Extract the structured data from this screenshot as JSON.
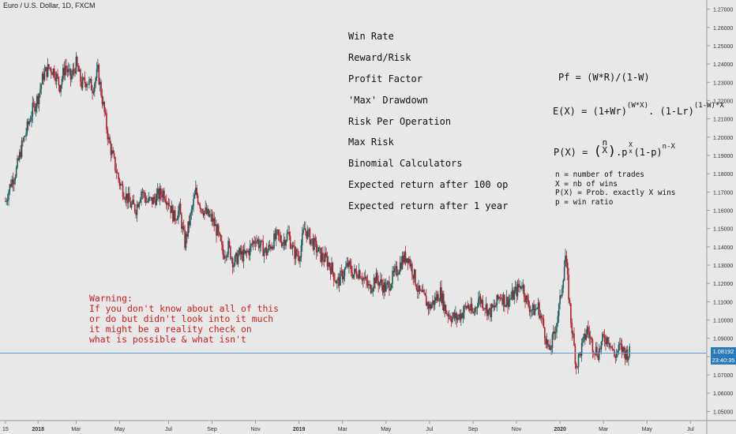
{
  "header": {
    "symbol_title": "Euro / U.S. Dollar, 1D, FXCM"
  },
  "menu": {
    "items": [
      "Win Rate",
      "Reward/Risk",
      "Profit Factor",
      "'Max' Drawdown",
      "Risk Per Operation",
      "Max Risk",
      "Binomial Calculators",
      "Expected return after 100 op",
      "Expected return after 1 year"
    ]
  },
  "formulas": {
    "pf": "Pf = (W*R)/(1-W)",
    "ex_left": "E(X) = (1+Wr)",
    "ex_sup1": "(W*X)",
    "ex_mid": ". (1-Lr)",
    "ex_sup2": "(1-W)*X",
    "px_left": "P(X) = ",
    "px_paren_open": "(",
    "px_n": "n",
    "px_x": "X",
    "px_paren_close": ")",
    "px_mid": ".p",
    "px_sup_x": "X",
    "px_sub_x": "x",
    "px_tail": "(1-p)",
    "px_sup_nx": "n-X"
  },
  "notes": [
    "n = number of trades",
    "X = nb of wins",
    "P(X) = Prob. exactly X wins",
    "p = win ratio"
  ],
  "warning": [
    "Warning:",
    "If you don't know about all of this",
    "or do but didn't look into it much",
    "it might be a reality check on",
    "what is possible & what isn't"
  ],
  "price_tags": {
    "last_price": "1.08192",
    "countdown": "23:40:35"
  },
  "colors": {
    "background": "#e8e8e8",
    "up_candle": "#1b5e5a",
    "down_candle": "#b02030",
    "last_price_line": "#5b9bd5",
    "last_price_tag": "#2a7ab8",
    "warning_text": "#c81e1e"
  },
  "chart_data": {
    "type": "candlestick",
    "title": "Euro / U.S. Dollar, 1D, FXCM",
    "xlabel": "",
    "ylabel": "",
    "ylim": [
      1.045,
      1.275
    ],
    "y_ticks": [
      "1.27000",
      "1.26000",
      "1.25000",
      "1.24000",
      "1.23000",
      "1.22000",
      "1.21000",
      "1.20000",
      "1.19000",
      "1.18000",
      "1.17000",
      "1.16000",
      "1.15000",
      "1.14000",
      "1.13000",
      "1.12000",
      "1.11000",
      "1.10000",
      "1.09000",
      "1.08000",
      "1.07000",
      "1.06000",
      "1.05000"
    ],
    "y_tick_values": [
      1.27,
      1.26,
      1.25,
      1.24,
      1.23,
      1.22,
      1.21,
      1.2,
      1.19,
      1.18,
      1.17,
      1.16,
      1.15,
      1.14,
      1.13,
      1.12,
      1.11,
      1.1,
      1.09,
      1.08,
      1.07,
      1.06,
      1.05
    ],
    "x_ticks": [
      "15",
      "2018",
      "Mar",
      "May",
      "Jul",
      "Sep",
      "Nov",
      "2019",
      "Mar",
      "May",
      "Jul",
      "Sep",
      "Nov",
      "2020",
      "Mar",
      "May",
      "Jul"
    ],
    "x_tick_values": [
      0,
      6,
      13,
      21,
      30,
      38,
      46,
      54,
      62,
      70,
      78,
      86,
      94,
      102,
      110,
      118,
      126
    ],
    "x_domain": [
      -1,
      129
    ],
    "x_unit": "weeks from mid-Dec 2017",
    "grid": false,
    "legend": "none",
    "last_price": 1.08192,
    "series": [
      {
        "values": [
          1.165,
          1.175,
          1.182,
          1.195,
          1.205,
          1.215,
          1.222,
          1.234,
          1.238,
          1.236,
          1.228,
          1.239,
          1.232,
          1.24,
          1.229,
          1.231,
          1.227,
          1.236,
          1.217,
          1.198,
          1.186,
          1.175,
          1.169,
          1.163,
          1.161,
          1.171,
          1.165,
          1.165,
          1.168,
          1.17,
          1.165,
          1.156,
          1.16,
          1.142,
          1.156,
          1.17,
          1.162,
          1.158,
          1.155,
          1.148,
          1.136,
          1.14,
          1.131,
          1.136,
          1.135,
          1.139,
          1.145,
          1.14,
          1.137,
          1.142,
          1.146,
          1.143,
          1.147,
          1.137,
          1.135,
          1.15,
          1.145,
          1.14,
          1.135,
          1.133,
          1.128,
          1.12,
          1.125,
          1.13,
          1.125,
          1.127,
          1.122,
          1.117,
          1.123,
          1.12,
          1.117,
          1.122,
          1.127,
          1.133,
          1.135,
          1.126,
          1.115,
          1.112,
          1.107,
          1.111,
          1.115,
          1.105,
          1.102,
          1.101,
          1.104,
          1.108,
          1.103,
          1.112,
          1.109,
          1.104,
          1.107,
          1.114,
          1.11,
          1.112,
          1.116,
          1.12,
          1.109,
          1.105,
          1.107,
          1.096,
          1.082,
          1.093,
          1.11,
          1.135,
          1.1,
          1.075,
          1.085,
          1.095,
          1.086,
          1.082,
          1.09,
          1.09,
          1.08,
          1.085,
          1.082
        ]
      }
    ]
  }
}
